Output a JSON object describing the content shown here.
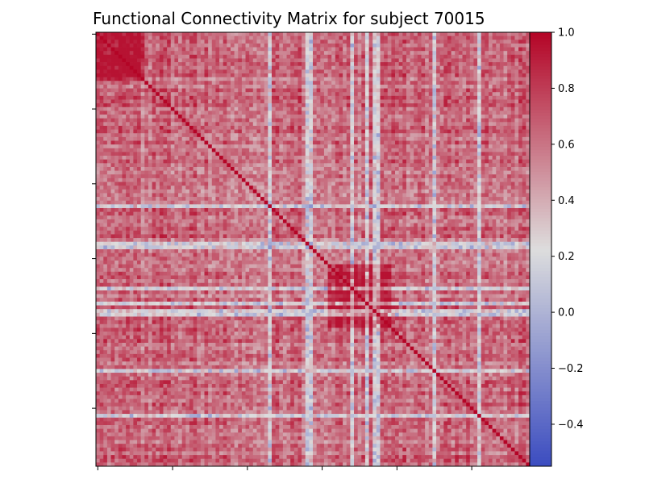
{
  "chart_data": {
    "type": "heatmap",
    "title": "Functional Connectivity Matrix for subject 70015",
    "xlabel": "",
    "ylabel": "",
    "colormap": "coolwarm",
    "colors": {
      "low": "#3b4cc0",
      "mid": "#dddddd",
      "high": "#b40426"
    },
    "value_range": [
      -0.55,
      1.0
    ],
    "matrix_size": 116,
    "diagonal_value": 1.0,
    "x_ticks": [
      "",
      "",
      "",
      "",
      "",
      ""
    ],
    "y_ticks": [
      "",
      "",
      "",
      "",
      "",
      ""
    ],
    "colorbar_ticks": [
      "1.0",
      "0.8",
      "0.6",
      "0.4",
      "0.2",
      "0.0",
      "−0.2",
      "−0.4"
    ],
    "colorbar_tick_values": [
      1.0,
      0.8,
      0.6,
      0.4,
      0.2,
      0.0,
      -0.2,
      -0.4
    ],
    "blocks": [
      {
        "range": [
          0,
          12
        ],
        "mean": 0.85
      },
      {
        "range": [
          62,
          78
        ],
        "mean": 0.85
      },
      {
        "range": [
          30,
          50
        ],
        "mean": 0.5
      }
    ],
    "low_correlation_rows": [
      46,
      56,
      57,
      68,
      72,
      74,
      75,
      90,
      102
    ],
    "grid": false
  }
}
